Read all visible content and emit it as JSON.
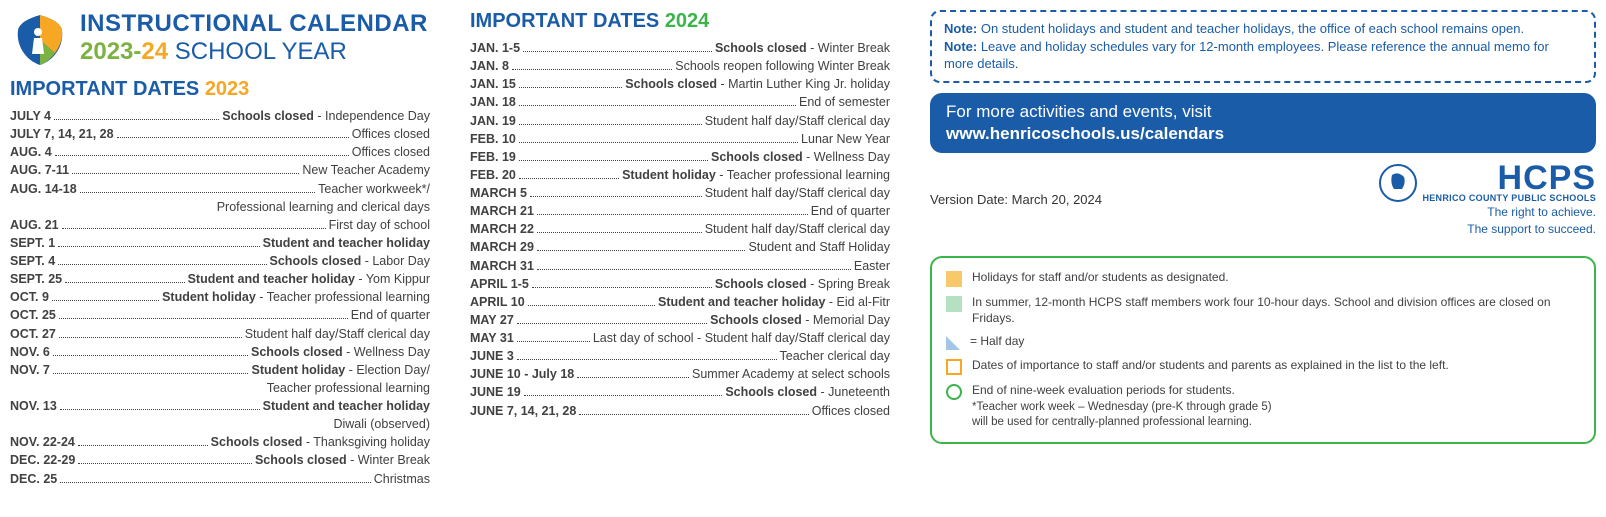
{
  "header": {
    "title": "INSTRUCTIONAL CALENDAR",
    "year_a": "2023",
    "dash": "-",
    "year_b": "24",
    "school_year": " SCHOOL YEAR"
  },
  "dates2023": {
    "heading_text": "IMPORTANT DATES ",
    "heading_year": "2023",
    "heading_year_color": "#f6a723",
    "rows": [
      {
        "d": "JULY 4",
        "t": "<span class='b'>Schools closed</span> - Independence Day"
      },
      {
        "d": "JULY 7, 14, 21, 28",
        "t": "Offices closed"
      },
      {
        "d": "AUG. 4",
        "t": "Offices closed"
      },
      {
        "d": "AUG. 7-11",
        "t": "New Teacher Academy"
      },
      {
        "d": "AUG. 14-18",
        "t": "Teacher workweek*/",
        "cont": "Professional learning and clerical days"
      },
      {
        "d": "AUG. 21",
        "t": "First day of school"
      },
      {
        "d": "SEPT. 1",
        "t": "<span class='b'>Student and teacher holiday</span>"
      },
      {
        "d": "SEPT. 4",
        "t": "<span class='b'>Schools closed</span> - Labor Day"
      },
      {
        "d": "SEPT. 25",
        "t": "<span class='b'>Student and teacher holiday</span> - Yom Kippur"
      },
      {
        "d": "OCT. 9",
        "t": "<span class='b'>Student holiday</span> - Teacher professional learning"
      },
      {
        "d": "OCT. 25",
        "t": "End of quarter"
      },
      {
        "d": "OCT. 27",
        "t": "Student half day/Staff clerical day"
      },
      {
        "d": "NOV. 6",
        "t": "<span class='b'>Schools closed</span> - Wellness Day"
      },
      {
        "d": "NOV. 7",
        "t": "<span class='b'>Student holiday</span> - Election Day/",
        "cont": "Teacher professional learning"
      },
      {
        "d": "NOV. 13",
        "t": "<span class='b'>Student and teacher holiday</span>",
        "cont": "Diwali (observed)"
      },
      {
        "d": "NOV. 22-24",
        "t": "<span class='b'>Schools closed</span> - Thanksgiving holiday"
      },
      {
        "d": "DEC. 22-29",
        "t": "<span class='b'>Schools closed</span> - Winter Break"
      },
      {
        "d": "DEC. 25",
        "t": "Christmas"
      }
    ]
  },
  "dates2024": {
    "heading_text": "IMPORTANT DATES ",
    "heading_year": "2024",
    "heading_year_color": "#3bb44a",
    "rows": [
      {
        "d": "JAN. 1-5",
        "t": "<span class='b'>Schools closed</span> - Winter Break"
      },
      {
        "d": "JAN. 8",
        "t": "Schools reopen following Winter Break"
      },
      {
        "d": "JAN. 15",
        "t": "<span class='b'>Schools closed</span> - Martin Luther King Jr. holiday"
      },
      {
        "d": "JAN. 18",
        "t": "End of semester"
      },
      {
        "d": "JAN. 19",
        "t": "Student half day/Staff clerical day"
      },
      {
        "d": "FEB. 10",
        "t": "Lunar New Year"
      },
      {
        "d": "FEB. 19",
        "t": "<span class='b'>Schools closed</span> - Wellness Day"
      },
      {
        "d": "FEB. 20",
        "t": "<span class='b'>Student holiday</span> - Teacher professional learning"
      },
      {
        "d": "MARCH 5",
        "t": "Student half day/Staff clerical day"
      },
      {
        "d": "MARCH 21",
        "t": "End of quarter"
      },
      {
        "d": "MARCH 22",
        "t": "Student half day/Staff clerical day"
      },
      {
        "d": "MARCH 29",
        "t": "Student and Staff Holiday"
      },
      {
        "d": "MARCH 31",
        "t": "Easter"
      },
      {
        "d": "APRIL 1-5",
        "t": "<span class='b'>Schools closed</span> - Spring Break"
      },
      {
        "d": "APRIL 10",
        "t": "<span class='b'>Student and teacher holiday</span> - Eid al-Fitr"
      },
      {
        "d": "MAY 27",
        "t": "<span class='b'>Schools closed</span> - Memorial Day"
      },
      {
        "d": "MAY 31",
        "t": "Last day of school - Student half day/Staff clerical day"
      },
      {
        "d": "JUNE 3",
        "t": "Teacher clerical day"
      },
      {
        "d": "JUNE 10 - July 18",
        "t": "Summer Academy at select schools"
      },
      {
        "d": "JUNE 19",
        "t": "<span class='b'>Schools closed</span> - Juneteenth"
      },
      {
        "d": "JUNE 7, 14, 21, 28",
        "t": "Offices closed"
      }
    ]
  },
  "notes": {
    "l1a": "Note:",
    "l1b": " On student holidays and student and teacher holidays, the office of each school remains open.",
    "l2a": "Note:",
    "l2b": " Leave and holiday schedules vary for 12-month employees. Please reference the annual memo for more details."
  },
  "linkbox": {
    "line1": "For more activities and events, visit",
    "line2": "www.henricoschools.us/calendars"
  },
  "version": "Version Date: March 20, 2024",
  "hcps": {
    "name": "HCPS",
    "sub": "HENRICO COUNTY PUBLIC SCHOOLS",
    "tag1": "The right to achieve.",
    "tag2": "The support to succeed."
  },
  "legend": {
    "items": [
      {
        "sw": "sw-solid",
        "t": "Holidays for staff and/or students as designated."
      },
      {
        "sw": "sw-green",
        "t": "In summer, 12-month HCPS staff members work four 10-hour days. School and division offices are closed on Fridays."
      },
      {
        "sw": "sw-tri",
        "t": "= Half day"
      },
      {
        "sw": "sw-outline-sq",
        "t": "Dates of importance to staff and/or students and parents as explained in the list to the left."
      },
      {
        "sw": "sw-outline-circ",
        "t": "End of  nine-week evaluation periods for students."
      }
    ],
    "footnote1": "*Teacher work week – Wednesday (pre-K through grade 5)",
    "footnote2": "  will be used for centrally-planned professional learning."
  },
  "colors": {
    "blue": "#1a5ca8",
    "green": "#3bb44a",
    "orange": "#f6a723",
    "lime": "#7bb241"
  }
}
